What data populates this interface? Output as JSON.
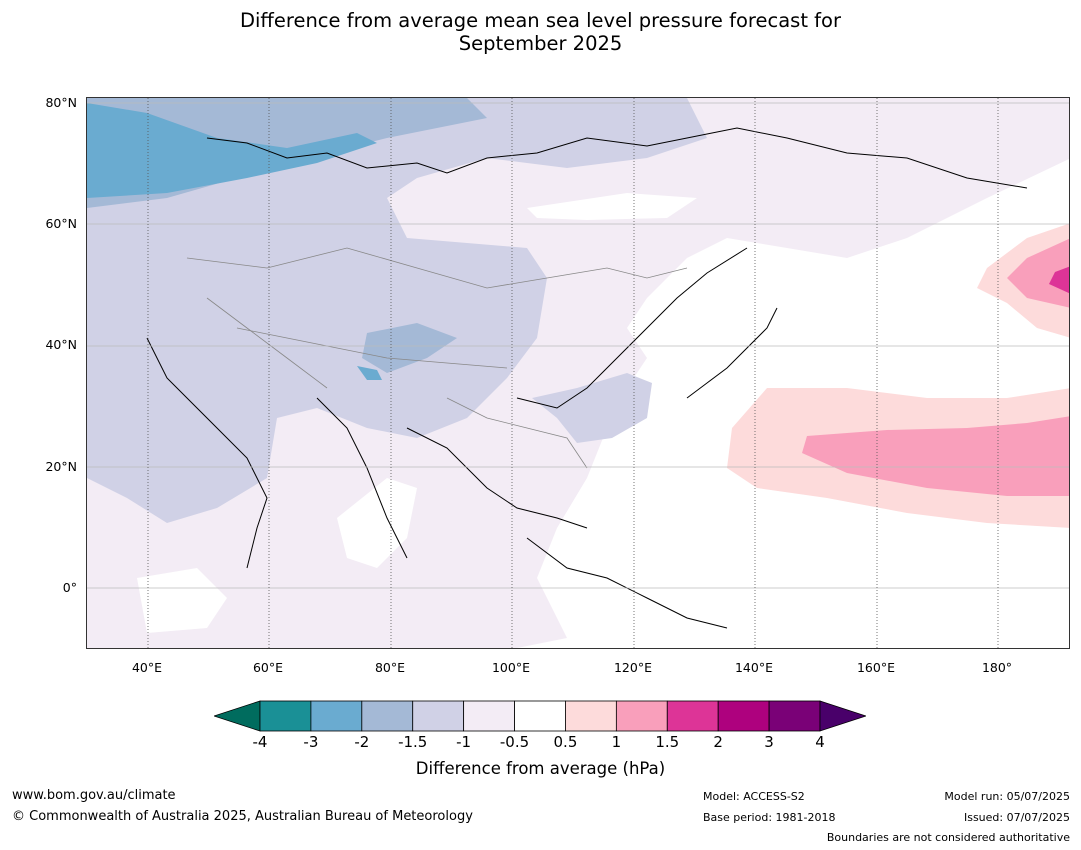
{
  "title_line1": "Difference from average mean sea level pressure forecast for",
  "title_line2": "September 2025",
  "map": {
    "lat_labels": [
      "80°N",
      "60°N",
      "40°N",
      "20°N",
      "0°"
    ],
    "lon_labels": [
      "40°E",
      "60°E",
      "80°E",
      "100°E",
      "120°E",
      "140°E",
      "160°E",
      "180°"
    ],
    "colors": {
      "neg4": "#006c5e",
      "neg3": "#1a9096",
      "neg2": "#6aabd0",
      "neg15": "#a4b9d6",
      "neg1": "#d0d1e6",
      "neg05": "#f3ecf5",
      "neutral": "#ffffff",
      "pos05": "#fddbdb",
      "pos1": "#f99fbb",
      "pos15": "#dd3497",
      "pos2": "#ae017e",
      "pos3": "#7a0177",
      "pos4": "#49006a"
    }
  },
  "colorbar": {
    "ticks": [
      "-4",
      "-3",
      "-2",
      "-1.5",
      "-1",
      "-0.5",
      "0.5",
      "1",
      "1.5",
      "2",
      "3",
      "4"
    ],
    "label": "Difference from average (hPa)",
    "colors": [
      "#1a9096",
      "#6aabd0",
      "#a4b9d6",
      "#d0d1e6",
      "#f3ecf5",
      "#ffffff",
      "#fddbdb",
      "#f99fbb",
      "#dd3497",
      "#ae017e",
      "#7a0177"
    ],
    "low_extend_color": "#006c5e",
    "high_extend_color": "#49006a"
  },
  "footer": {
    "website": "www.bom.gov.au/climate",
    "copyright": "© Commonwealth of Australia 2025, Australian Bureau of Meteorology",
    "model": "Model: ACCESS-S2",
    "base_period": "Base period: 1981-2018",
    "model_run": "Model run: 05/07/2025",
    "issued": "Issued: 07/07/2025",
    "disclaimer": "Boundaries are not considered authoritative"
  }
}
